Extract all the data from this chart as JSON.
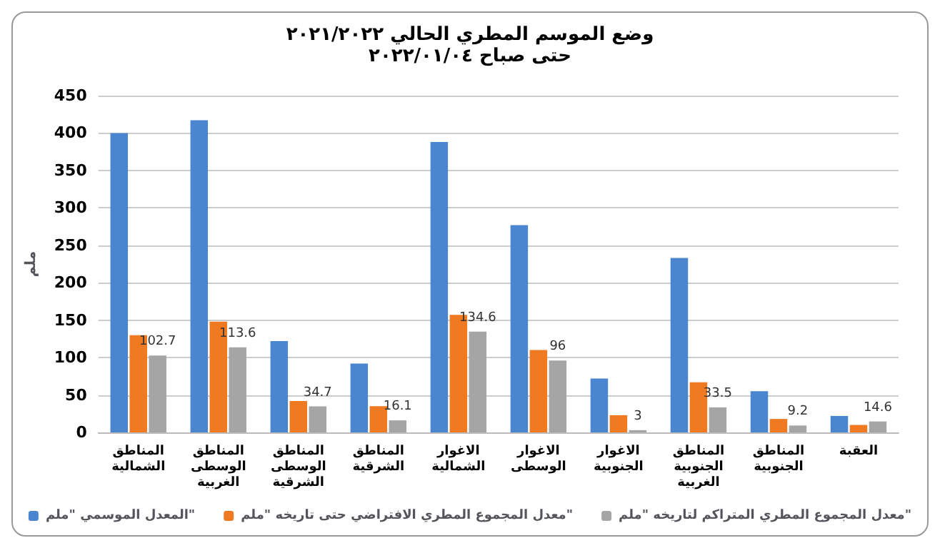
{
  "chart_data": {
    "type": "bar",
    "title": "وضع الموسم المطري الحالي ٢٠٢١/٢٠٢٢",
    "subtitle": "حتى صباح ٢٠٢٢/٠١/٠٤",
    "ylabel": "ملم",
    "categories": [
      "المناطق الشمالية",
      "المناطق الوسطى الغربية",
      "المناطق الوسطى الشرقية",
      "المناطق الشرقية",
      "الاغوار الشمالية",
      "الاغوار الوسطى",
      "الاغوار الجنوبية",
      "المناطق الجنوبية الغربية",
      "المناطق الجنوبية",
      "العقبة"
    ],
    "series": [
      {
        "name": "المعدل الموسمي \"ملم\"",
        "color": "#4a86d0",
        "values": [
          400,
          417,
          122,
          92,
          388,
          277,
          72,
          233,
          55,
          22
        ]
      },
      {
        "name": "معدل المجموع المطري الافتراضي حتى تاريخه \"ملم\"",
        "color": "#f07a22",
        "values": [
          130,
          148,
          42,
          35,
          157,
          110,
          23,
          67,
          18,
          10
        ]
      },
      {
        "name": "معدل المجموع المطري المتراكم لتاريخه \"ملم\"",
        "color": "#a5a5a5",
        "values": [
          102.7,
          113.6,
          34.7,
          16.1,
          134.6,
          96,
          3,
          33.5,
          9.2,
          14.6
        ],
        "value_labels": [
          "102.7",
          "113.6",
          "34.7",
          "16.1",
          "134.6",
          "96",
          "3",
          "33.5",
          "9.2",
          "14.6"
        ]
      }
    ],
    "ylim": [
      0,
      450
    ],
    "yticks": [
      0,
      50,
      100,
      150,
      200,
      250,
      300,
      350,
      400,
      450
    ],
    "grid": "y",
    "legend": "bottom"
  }
}
